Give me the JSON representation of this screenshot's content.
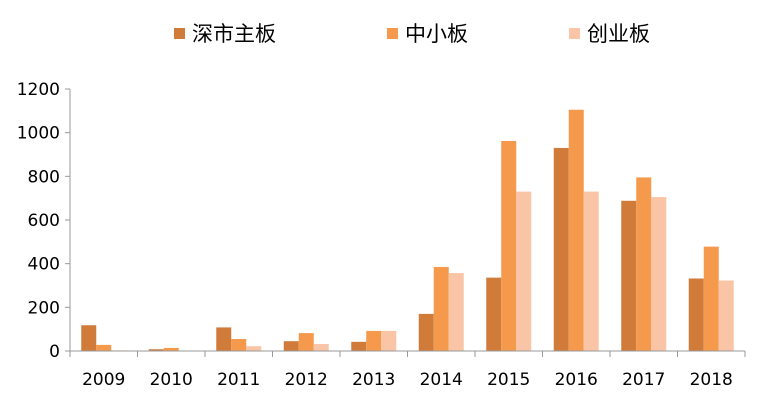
{
  "chart_data": {
    "type": "bar",
    "categories": [
      "2009",
      "2010",
      "2011",
      "2012",
      "2013",
      "2014",
      "2015",
      "2016",
      "2017",
      "2018"
    ],
    "series": [
      {
        "name": "深市主板",
        "color": "#D07B3A",
        "values": [
          118,
          8,
          108,
          45,
          42,
          170,
          336,
          930,
          688,
          332
        ]
      },
      {
        "name": "中小板",
        "color": "#F5994C",
        "values": [
          28,
          14,
          55,
          82,
          92,
          385,
          962,
          1105,
          795,
          478
        ]
      },
      {
        "name": "创业板",
        "color": "#F9C5A6",
        "values": [
          3,
          2,
          22,
          32,
          92,
          357,
          730,
          730,
          705,
          323
        ]
      }
    ],
    "ylim": [
      0,
      1200
    ],
    "yticks": [
      0,
      200,
      400,
      600,
      800,
      1000,
      1200
    ],
    "legend_position": "top",
    "grid": false
  }
}
